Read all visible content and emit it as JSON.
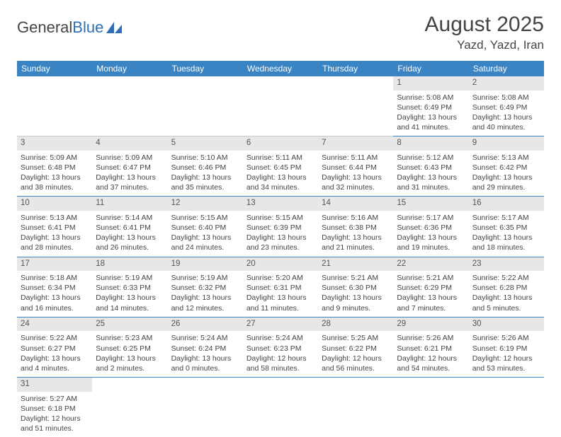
{
  "logo": {
    "text1": "General",
    "text2": "Blue"
  },
  "title": "August 2025",
  "location": "Yazd, Yazd, Iran",
  "colors": {
    "header_bg": "#3b84c4",
    "header_fg": "#ffffff",
    "daynum_bg": "#e7e7e7",
    "row_divider": "#3b84c4",
    "text": "#444444"
  },
  "weekdays": [
    "Sunday",
    "Monday",
    "Tuesday",
    "Wednesday",
    "Thursday",
    "Friday",
    "Saturday"
  ],
  "weeks": [
    [
      null,
      null,
      null,
      null,
      null,
      {
        "n": "1",
        "sr": "Sunrise: 5:08 AM",
        "ss": "Sunset: 6:49 PM",
        "d1": "Daylight: 13 hours",
        "d2": "and 41 minutes."
      },
      {
        "n": "2",
        "sr": "Sunrise: 5:08 AM",
        "ss": "Sunset: 6:49 PM",
        "d1": "Daylight: 13 hours",
        "d2": "and 40 minutes."
      }
    ],
    [
      {
        "n": "3",
        "sr": "Sunrise: 5:09 AM",
        "ss": "Sunset: 6:48 PM",
        "d1": "Daylight: 13 hours",
        "d2": "and 38 minutes."
      },
      {
        "n": "4",
        "sr": "Sunrise: 5:09 AM",
        "ss": "Sunset: 6:47 PM",
        "d1": "Daylight: 13 hours",
        "d2": "and 37 minutes."
      },
      {
        "n": "5",
        "sr": "Sunrise: 5:10 AM",
        "ss": "Sunset: 6:46 PM",
        "d1": "Daylight: 13 hours",
        "d2": "and 35 minutes."
      },
      {
        "n": "6",
        "sr": "Sunrise: 5:11 AM",
        "ss": "Sunset: 6:45 PM",
        "d1": "Daylight: 13 hours",
        "d2": "and 34 minutes."
      },
      {
        "n": "7",
        "sr": "Sunrise: 5:11 AM",
        "ss": "Sunset: 6:44 PM",
        "d1": "Daylight: 13 hours",
        "d2": "and 32 minutes."
      },
      {
        "n": "8",
        "sr": "Sunrise: 5:12 AM",
        "ss": "Sunset: 6:43 PM",
        "d1": "Daylight: 13 hours",
        "d2": "and 31 minutes."
      },
      {
        "n": "9",
        "sr": "Sunrise: 5:13 AM",
        "ss": "Sunset: 6:42 PM",
        "d1": "Daylight: 13 hours",
        "d2": "and 29 minutes."
      }
    ],
    [
      {
        "n": "10",
        "sr": "Sunrise: 5:13 AM",
        "ss": "Sunset: 6:41 PM",
        "d1": "Daylight: 13 hours",
        "d2": "and 28 minutes."
      },
      {
        "n": "11",
        "sr": "Sunrise: 5:14 AM",
        "ss": "Sunset: 6:41 PM",
        "d1": "Daylight: 13 hours",
        "d2": "and 26 minutes."
      },
      {
        "n": "12",
        "sr": "Sunrise: 5:15 AM",
        "ss": "Sunset: 6:40 PM",
        "d1": "Daylight: 13 hours",
        "d2": "and 24 minutes."
      },
      {
        "n": "13",
        "sr": "Sunrise: 5:15 AM",
        "ss": "Sunset: 6:39 PM",
        "d1": "Daylight: 13 hours",
        "d2": "and 23 minutes."
      },
      {
        "n": "14",
        "sr": "Sunrise: 5:16 AM",
        "ss": "Sunset: 6:38 PM",
        "d1": "Daylight: 13 hours",
        "d2": "and 21 minutes."
      },
      {
        "n": "15",
        "sr": "Sunrise: 5:17 AM",
        "ss": "Sunset: 6:36 PM",
        "d1": "Daylight: 13 hours",
        "d2": "and 19 minutes."
      },
      {
        "n": "16",
        "sr": "Sunrise: 5:17 AM",
        "ss": "Sunset: 6:35 PM",
        "d1": "Daylight: 13 hours",
        "d2": "and 18 minutes."
      }
    ],
    [
      {
        "n": "17",
        "sr": "Sunrise: 5:18 AM",
        "ss": "Sunset: 6:34 PM",
        "d1": "Daylight: 13 hours",
        "d2": "and 16 minutes."
      },
      {
        "n": "18",
        "sr": "Sunrise: 5:19 AM",
        "ss": "Sunset: 6:33 PM",
        "d1": "Daylight: 13 hours",
        "d2": "and 14 minutes."
      },
      {
        "n": "19",
        "sr": "Sunrise: 5:19 AM",
        "ss": "Sunset: 6:32 PM",
        "d1": "Daylight: 13 hours",
        "d2": "and 12 minutes."
      },
      {
        "n": "20",
        "sr": "Sunrise: 5:20 AM",
        "ss": "Sunset: 6:31 PM",
        "d1": "Daylight: 13 hours",
        "d2": "and 11 minutes."
      },
      {
        "n": "21",
        "sr": "Sunrise: 5:21 AM",
        "ss": "Sunset: 6:30 PM",
        "d1": "Daylight: 13 hours",
        "d2": "and 9 minutes."
      },
      {
        "n": "22",
        "sr": "Sunrise: 5:21 AM",
        "ss": "Sunset: 6:29 PM",
        "d1": "Daylight: 13 hours",
        "d2": "and 7 minutes."
      },
      {
        "n": "23",
        "sr": "Sunrise: 5:22 AM",
        "ss": "Sunset: 6:28 PM",
        "d1": "Daylight: 13 hours",
        "d2": "and 5 minutes."
      }
    ],
    [
      {
        "n": "24",
        "sr": "Sunrise: 5:22 AM",
        "ss": "Sunset: 6:27 PM",
        "d1": "Daylight: 13 hours",
        "d2": "and 4 minutes."
      },
      {
        "n": "25",
        "sr": "Sunrise: 5:23 AM",
        "ss": "Sunset: 6:25 PM",
        "d1": "Daylight: 13 hours",
        "d2": "and 2 minutes."
      },
      {
        "n": "26",
        "sr": "Sunrise: 5:24 AM",
        "ss": "Sunset: 6:24 PM",
        "d1": "Daylight: 13 hours",
        "d2": "and 0 minutes."
      },
      {
        "n": "27",
        "sr": "Sunrise: 5:24 AM",
        "ss": "Sunset: 6:23 PM",
        "d1": "Daylight: 12 hours",
        "d2": "and 58 minutes."
      },
      {
        "n": "28",
        "sr": "Sunrise: 5:25 AM",
        "ss": "Sunset: 6:22 PM",
        "d1": "Daylight: 12 hours",
        "d2": "and 56 minutes."
      },
      {
        "n": "29",
        "sr": "Sunrise: 5:26 AM",
        "ss": "Sunset: 6:21 PM",
        "d1": "Daylight: 12 hours",
        "d2": "and 54 minutes."
      },
      {
        "n": "30",
        "sr": "Sunrise: 5:26 AM",
        "ss": "Sunset: 6:19 PM",
        "d1": "Daylight: 12 hours",
        "d2": "and 53 minutes."
      }
    ],
    [
      {
        "n": "31",
        "sr": "Sunrise: 5:27 AM",
        "ss": "Sunset: 6:18 PM",
        "d1": "Daylight: 12 hours",
        "d2": "and 51 minutes."
      },
      null,
      null,
      null,
      null,
      null,
      null
    ]
  ]
}
